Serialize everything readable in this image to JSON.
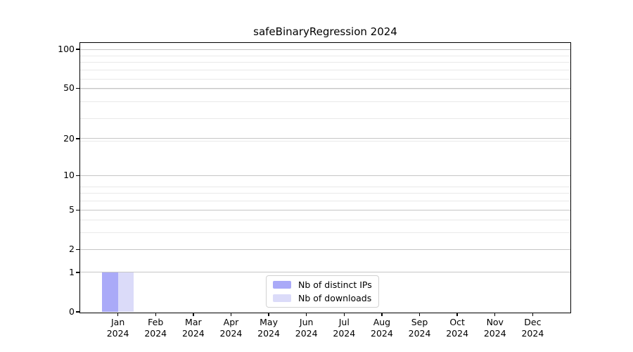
{
  "title": "safeBinaryRegression 2024",
  "legend": {
    "items": [
      {
        "label": "Nb of distinct IPs",
        "color": "#aaaaf8"
      },
      {
        "label": "Nb of downloads",
        "color": "#dbdbf9"
      }
    ]
  },
  "chart_data": {
    "type": "bar",
    "title": "safeBinaryRegression 2024",
    "xlabel": "",
    "ylabel": "",
    "categories": [
      "Jan\n2024",
      "Feb\n2024",
      "Mar\n2024",
      "Apr\n2024",
      "May\n2024",
      "Jun\n2024",
      "Jul\n2024",
      "Aug\n2024",
      "Sep\n2024",
      "Oct\n2024",
      "Nov\n2024",
      "Dec\n2024"
    ],
    "series": [
      {
        "name": "Nb of distinct IPs",
        "color": "#aaaaf8",
        "values": [
          1,
          0,
          0,
          0,
          0,
          0,
          0,
          0,
          0,
          0,
          0,
          0
        ]
      },
      {
        "name": "Nb of downloads",
        "color": "#dbdbf9",
        "values": [
          1,
          0,
          0,
          0,
          0,
          0,
          0,
          0,
          0,
          0,
          0,
          0
        ]
      }
    ],
    "yscale": "log10(1+y)",
    "yticks": [
      0,
      1,
      2,
      5,
      10,
      20,
      50,
      100
    ],
    "minor_yticks": [
      1,
      2,
      3,
      4,
      5,
      6,
      7,
      8,
      19,
      29,
      39,
      49,
      59,
      69,
      79,
      89
    ],
    "ylim": [
      0,
      112
    ],
    "grid": {
      "major_color": "#c6c6c6",
      "minor_color": "#e9e9e9"
    },
    "legend_position": "lower center",
    "bar_colors": {
      "distinct_ips": "#aaaaf8",
      "downloads": "#dbdbf9"
    }
  }
}
